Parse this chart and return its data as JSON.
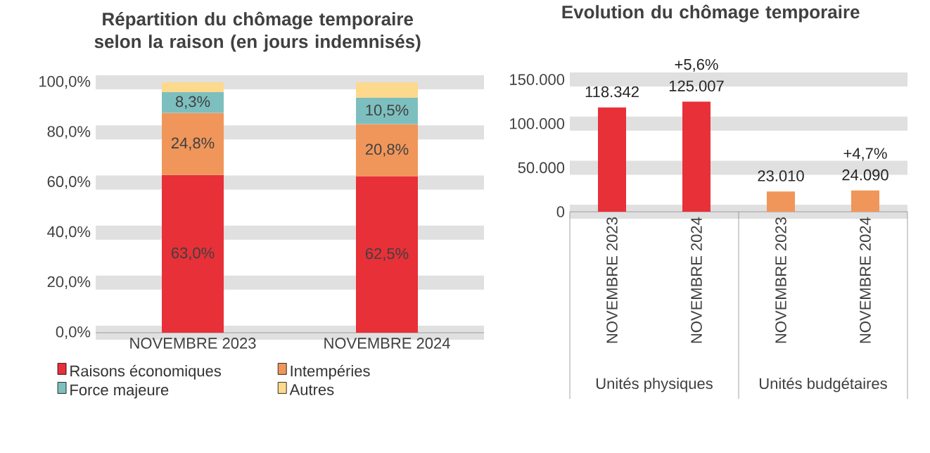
{
  "chart_data": [
    {
      "type": "bar",
      "title": "Répartition du chômage temporaire selon la raison (en jours indemnisés)",
      "categories": [
        "NOVEMBRE 2023",
        "NOVEMBRE 2024"
      ],
      "stacked": true,
      "legend": "bottom",
      "grid": "y",
      "ylim": [
        0,
        100
      ],
      "yticks": [
        {
          "value": 0,
          "label": "0,0%"
        },
        {
          "value": 20,
          "label": "20,0%"
        },
        {
          "value": 40,
          "label": "40,0%"
        },
        {
          "value": 60,
          "label": "60,0%"
        },
        {
          "value": 80,
          "label": "80,0%"
        },
        {
          "value": 100,
          "label": "100,0%"
        }
      ],
      "series": [
        {
          "name": "Raisons économiques",
          "color": "#e83038",
          "values": [
            63.0,
            62.5
          ],
          "value_labels": [
            "63,0%",
            "62,5%"
          ]
        },
        {
          "name": "Intempéries",
          "color": "#f0965a",
          "values": [
            24.8,
            20.8
          ],
          "value_labels": [
            "24,8%",
            "20,8%"
          ]
        },
        {
          "name": "Force majeure",
          "color": "#7dbfbf",
          "values": [
            8.3,
            10.5
          ],
          "value_labels": [
            "8,3%",
            "10,5%"
          ]
        },
        {
          "name": "Autres",
          "color": "#fdd98e",
          "values": [
            3.9,
            6.2
          ]
        }
      ]
    },
    {
      "type": "bar",
      "title": "Evolution du chômage temporaire",
      "categories": [
        "NOVEMBRE 2023",
        "NOVEMBRE 2024",
        "NOVEMBRE 2023",
        "NOVEMBRE 2024"
      ],
      "grid": "y",
      "ylim": [
        0,
        150000
      ],
      "yticks": [
        {
          "value": 0,
          "label": "0"
        },
        {
          "value": 50000,
          "label": "50.000"
        },
        {
          "value": 100000,
          "label": "100.000"
        },
        {
          "value": 150000,
          "label": "150.000"
        }
      ],
      "values": [
        118342,
        125007,
        23010,
        24090
      ],
      "colors": [
        "#e83038",
        "#e83038",
        "#f0965a",
        "#f0965a"
      ],
      "value_labels": [
        "118.342",
        "125.007",
        "23.010",
        "24.090"
      ],
      "annotations": [
        "+5,6%",
        "+4,7%",
        "Unités physiques",
        "Unités budgétaires"
      ]
    }
  ]
}
